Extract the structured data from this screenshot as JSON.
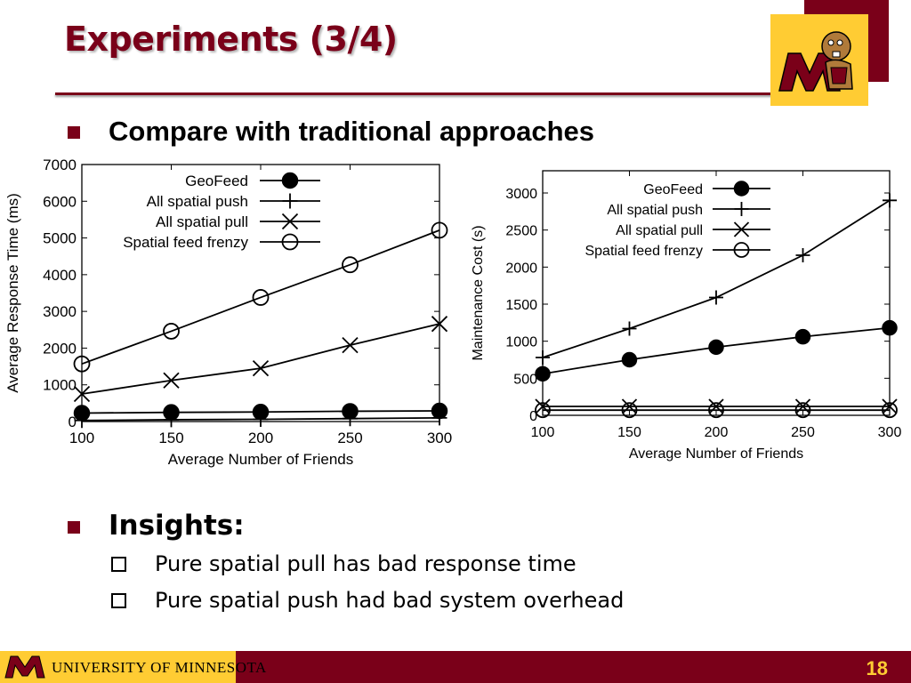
{
  "slide": {
    "title": "Experiments (3/4)",
    "bullet1": "Compare with traditional approaches",
    "bullet2": "Insights:",
    "sub_items": [
      "Pure spatial pull has bad response time",
      "Pure spatial push had bad system overhead"
    ],
    "footer_text": "UNIVERSITY OF MINNESOTA",
    "page_number": "18"
  },
  "colors": {
    "maroon": "#7a0019",
    "gold": "#ffcc33"
  },
  "chart_data": [
    {
      "type": "line",
      "xlabel": "Average Number of Friends",
      "ylabel": "Average Response Time (ms)",
      "x": [
        100,
        150,
        200,
        250,
        300
      ],
      "xlim": [
        100,
        300
      ],
      "ylim": [
        0,
        7000
      ],
      "xticks": [
        100,
        150,
        200,
        250,
        300
      ],
      "yticks": [
        0,
        1000,
        2000,
        3000,
        4000,
        5000,
        6000,
        7000
      ],
      "legend": "top-left",
      "series": [
        {
          "name": "GeoFeed",
          "marker": "filled-circle",
          "values": [
            230,
            250,
            260,
            280,
            290
          ]
        },
        {
          "name": "All spatial push",
          "marker": "plus",
          "values": [
            30,
            50,
            60,
            80,
            100
          ]
        },
        {
          "name": "All spatial pull",
          "marker": "x",
          "values": [
            750,
            1120,
            1450,
            2080,
            2660
          ]
        },
        {
          "name": "Spatial feed frenzy",
          "marker": "open-circle",
          "values": [
            1570,
            2460,
            3380,
            4270,
            5210
          ]
        }
      ]
    },
    {
      "type": "line",
      "xlabel": "Average Number of Friends",
      "ylabel": "Maintenance Cost (s)",
      "x": [
        100,
        150,
        200,
        250,
        300
      ],
      "xlim": [
        100,
        300
      ],
      "ylim": [
        0,
        3300
      ],
      "xticks": [
        100,
        150,
        200,
        250,
        300
      ],
      "yticks": [
        0,
        500,
        1000,
        1500,
        2000,
        2500,
        3000
      ],
      "legend": "top-left",
      "series": [
        {
          "name": "GeoFeed",
          "marker": "filled-circle",
          "values": [
            560,
            750,
            920,
            1060,
            1180
          ]
        },
        {
          "name": "All spatial push",
          "marker": "plus",
          "values": [
            780,
            1170,
            1590,
            2160,
            2900
          ]
        },
        {
          "name": "All spatial pull",
          "marker": "x",
          "values": [
            120,
            120,
            120,
            120,
            120
          ]
        },
        {
          "name": "Spatial feed frenzy",
          "marker": "open-circle",
          "values": [
            70,
            70,
            70,
            70,
            70
          ]
        }
      ]
    }
  ]
}
